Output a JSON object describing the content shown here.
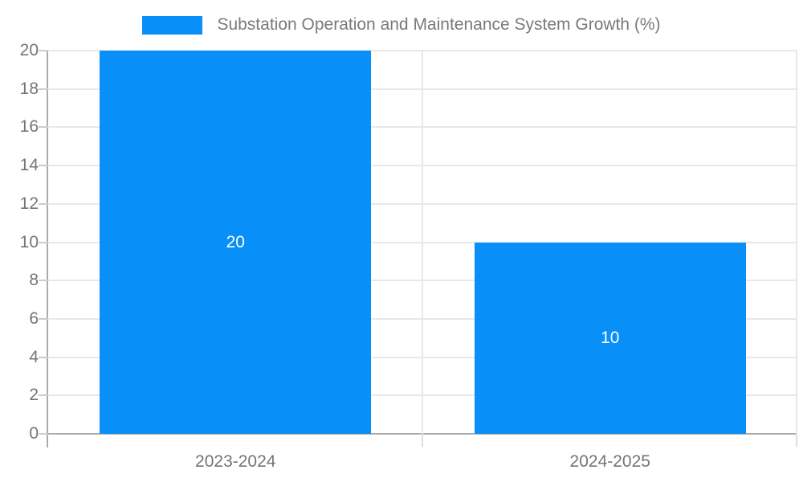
{
  "chart_data": {
    "type": "bar",
    "title": "Substation Operation and Maintenance System Growth (%)",
    "legend": [
      "Substation Operation and Maintenance System Growth (%)"
    ],
    "legend_position": "top",
    "categories": [
      "2023-2024",
      "2024-2025"
    ],
    "values": [
      20,
      10
    ],
    "data_labels": [
      "20",
      "10"
    ],
    "xlabel": "",
    "ylabel": "",
    "ylim": [
      0,
      20
    ],
    "yticks": [
      0,
      2,
      4,
      6,
      8,
      10,
      12,
      14,
      16,
      18,
      20
    ],
    "grid": true,
    "colors": {
      "bar": "#0890f8",
      "grid": "#e8e8e8",
      "axis": "#ababab",
      "tick_text": "#757575",
      "legend_text": "#7a7a7a",
      "data_label": "#ffffff"
    }
  }
}
